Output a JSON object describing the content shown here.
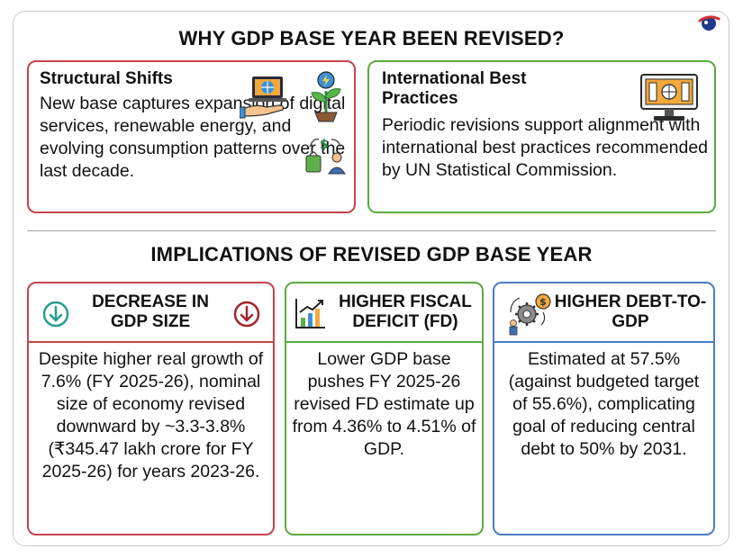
{
  "heading_top": "WHY GDP BASE YEAR BEEN REVISED?",
  "heading_bottom": "IMPLICATIONS OF REVISED GDP BASE YEAR",
  "structural": {
    "title": "Structural Shifts",
    "text": "New base captures expansion of digital services, renewable energy, and evolving consumption patterns over the last decade.",
    "icons": [
      "digital-services-hand-icon",
      "renewable-plant-icon",
      "consumption-exchange-icon"
    ]
  },
  "international": {
    "title": "International Best Practices",
    "text": "Periodic revisions support alignment with international best practices recommended by UN Statistical Commission.",
    "icons": [
      "computer-monitor-icon"
    ]
  },
  "implications": {
    "gdp_size": {
      "title": "DECREASE IN GDP SIZE",
      "text": "Despite higher real growth of 7.6% (FY 2025-26), nominal size of economy revised downward by ~3.3-3.8% (₹345.47 lakh crore for FY 2025-26) for years 2023-26.",
      "icons": [
        "teal-down-arrow-icon",
        "red-down-arrow-icon"
      ]
    },
    "fiscal": {
      "title": "HIGHER FISCAL DEFICIT (FD)",
      "text": "Lower GDP base pushes FY 2025-26 revised FD estimate up from 4.36% to 4.51% of GDP.",
      "icons": [
        "growth-chart-icon"
      ]
    },
    "debt": {
      "title": "HIGHER DEBT-TO-GDP",
      "text": "Estimated at 57.5% (against budgeted target of 55.6%), complicating goal of reducing central debt to 50% by 2031.",
      "icons": [
        "gear-dollar-person-icon"
      ]
    }
  },
  "colors": {
    "red": "#c7434b",
    "green": "#5aab3f",
    "blue": "#4a7cc4",
    "teal": "#2a9d8f",
    "dark_red": "#a3262c"
  }
}
